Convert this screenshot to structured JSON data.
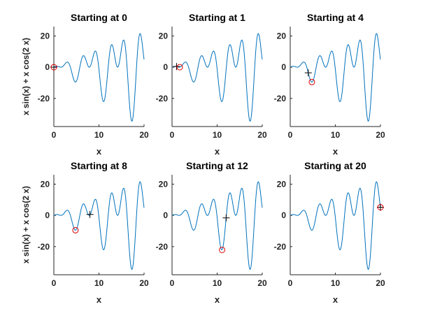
{
  "chart_data": [
    {
      "type": "line",
      "title": "Starting at 0",
      "xlabel": "x",
      "ylabel": "x sin(x) + x cos(2 x)",
      "xlim": [
        0,
        20
      ],
      "ylim": [
        -38,
        26
      ],
      "xticks": [
        "0",
        "10",
        "20"
      ],
      "yticks": [
        "20",
        "0",
        "-20"
      ],
      "series": [
        {
          "function": "x sin(x) + x cos(2 x)",
          "x_range": [
            0,
            20
          ]
        }
      ],
      "start_point": {
        "x": 0,
        "y": 0
      },
      "minimum_point": {
        "x": 0,
        "y": 0
      }
    },
    {
      "type": "line",
      "title": "Starting at 1",
      "xlabel": "x",
      "ylabel": "",
      "xlim": [
        0,
        20
      ],
      "ylim": [
        -38,
        26
      ],
      "xticks": [
        "0",
        "10",
        "20"
      ],
      "yticks": [
        "20",
        "0",
        "-20"
      ],
      "series": [
        {
          "function": "x sin(x) + x cos(2 x)",
          "x_range": [
            0,
            20
          ]
        }
      ],
      "start_point": {
        "x": 1,
        "y": 0.42
      },
      "minimum_point": {
        "x": 1.71,
        "y": 0.0
      }
    },
    {
      "type": "line",
      "title": "Starting at 4",
      "xlabel": "x",
      "ylabel": "",
      "xlim": [
        0,
        20
      ],
      "ylim": [
        -38,
        26
      ],
      "xticks": [
        "0",
        "10",
        "20"
      ],
      "yticks": [
        "20",
        "0",
        "-20"
      ],
      "series": [
        {
          "function": "x sin(x) + x cos(2 x)",
          "x_range": [
            0,
            20
          ]
        }
      ],
      "start_point": {
        "x": 4,
        "y": -3.6
      },
      "minimum_point": {
        "x": 4.8,
        "y": -9.5
      }
    },
    {
      "type": "line",
      "title": "Starting at 8",
      "xlabel": "x",
      "ylabel": "x sin(x) + x cos(2 x)",
      "xlim": [
        0,
        20
      ],
      "ylim": [
        -38,
        26
      ],
      "xticks": [
        "0",
        "10",
        "20"
      ],
      "yticks": [
        "20",
        "0",
        "-20"
      ],
      "series": [
        {
          "function": "x sin(x) + x cos(2 x)",
          "x_range": [
            0,
            20
          ]
        }
      ],
      "start_point": {
        "x": 8,
        "y": 0.6
      },
      "minimum_point": {
        "x": 4.8,
        "y": -9.5
      }
    },
    {
      "type": "line",
      "title": "Starting at 12",
      "xlabel": "x",
      "ylabel": "",
      "xlim": [
        0,
        20
      ],
      "ylim": [
        -38,
        26
      ],
      "xticks": [
        "0",
        "10",
        "20"
      ],
      "yticks": [
        "20",
        "0",
        "-20"
      ],
      "series": [
        {
          "function": "x sin(x) + x cos(2 x)",
          "x_range": [
            0,
            20
          ]
        }
      ],
      "start_point": {
        "x": 12,
        "y": -1.6
      },
      "minimum_point": {
        "x": 11.1,
        "y": -22.1
      }
    },
    {
      "type": "line",
      "title": "Starting at 20",
      "xlabel": "x",
      "ylabel": "",
      "xlim": [
        0,
        20
      ],
      "ylim": [
        -38,
        26
      ],
      "xticks": [
        "0",
        "10",
        "20"
      ],
      "yticks": [
        "20",
        "0",
        "-20"
      ],
      "series": [
        {
          "function": "x sin(x) + x cos(2 x)",
          "x_range": [
            0,
            20
          ]
        }
      ],
      "start_point": {
        "x": 20,
        "y": 5.2
      },
      "minimum_point": {
        "x": 20,
        "y": 5.2
      }
    }
  ],
  "colors": {
    "curve": "#0072BD",
    "minimum_marker": "#e00000",
    "start_marker": "#000000",
    "axes": "#262626"
  }
}
